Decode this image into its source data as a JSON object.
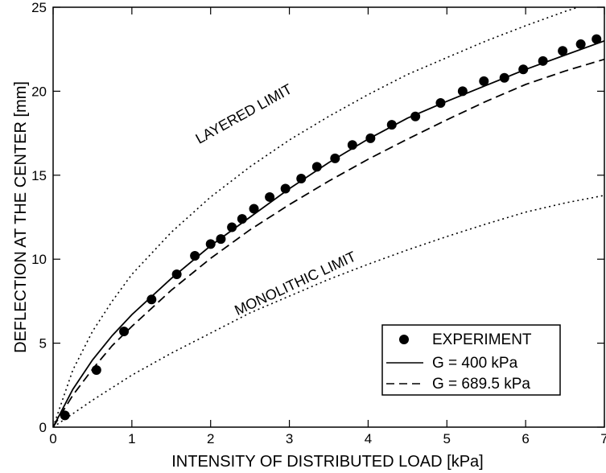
{
  "chart_data": {
    "type": "line",
    "title": "",
    "xlabel": "INTENSITY OF DISTRIBUTED LOAD [kPa]",
    "ylabel": "DEFLECTION AT THE CENTER [mm]",
    "xlim": [
      0,
      7
    ],
    "ylim": [
      0,
      25
    ],
    "x_ticks": [
      0,
      1,
      2,
      3,
      4,
      5,
      6,
      7
    ],
    "y_ticks": [
      0,
      5,
      10,
      15,
      20,
      25
    ],
    "grid": false,
    "legend_position": "bottom-right",
    "annotations": [
      {
        "text": "LAYERED LIMIT",
        "x": 2.45,
        "y": 18.4,
        "angle": -29
      },
      {
        "text": "MONOLITHIC LIMIT",
        "x": 3.1,
        "y": 8.3,
        "angle": -25
      }
    ],
    "series": [
      {
        "name": "EXPERIMENT",
        "style": "markers",
        "color": "#000000",
        "x": [
          0.15,
          0.55,
          0.9,
          1.25,
          1.57,
          1.8,
          2.0,
          2.13,
          2.27,
          2.4,
          2.55,
          2.75,
          2.95,
          3.15,
          3.35,
          3.58,
          3.8,
          4.03,
          4.3,
          4.6,
          4.92,
          5.2,
          5.47,
          5.73,
          5.97,
          6.22,
          6.47,
          6.7,
          6.9
        ],
        "y": [
          0.7,
          3.4,
          5.7,
          7.6,
          9.1,
          10.2,
          10.9,
          11.2,
          11.9,
          12.4,
          13.0,
          13.7,
          14.2,
          14.8,
          15.5,
          16.0,
          16.8,
          17.2,
          18.0,
          18.5,
          19.3,
          20.0,
          20.6,
          20.8,
          21.3,
          21.8,
          22.4,
          22.8,
          23.1
        ]
      },
      {
        "name": "G = 400 kPa",
        "style": "solid",
        "color": "#000000",
        "x": [
          0,
          0.25,
          0.5,
          0.75,
          1,
          1.5,
          2,
          2.5,
          3,
          3.5,
          4,
          4.5,
          5,
          5.5,
          6,
          6.5,
          7
        ],
        "y": [
          0,
          2.25,
          4.0,
          5.45,
          6.7,
          8.85,
          10.8,
          12.5,
          14.2,
          15.75,
          17.15,
          18.4,
          19.4,
          20.35,
          21.3,
          22.15,
          23.0
        ]
      },
      {
        "name": "G = 689.5 kPa",
        "style": "dashed",
        "color": "#000000",
        "x": [
          0,
          0.25,
          0.5,
          0.75,
          1,
          1.5,
          2,
          2.5,
          3,
          3.5,
          4,
          4.5,
          5,
          5.5,
          6,
          6.5,
          7
        ],
        "y": [
          0,
          1.9,
          3.45,
          4.85,
          6.0,
          8.15,
          10.05,
          11.75,
          13.25,
          14.65,
          15.95,
          17.15,
          18.3,
          19.4,
          20.4,
          21.2,
          21.9
        ]
      },
      {
        "style": "dotted",
        "color": "#000000",
        "x": [
          0,
          0.25,
          0.5,
          0.75,
          1,
          1.5,
          2,
          2.5,
          3,
          3.5,
          4,
          4.5,
          5,
          5.5,
          6,
          6.5,
          7
        ],
        "y": [
          0,
          3.4,
          5.7,
          7.5,
          9.1,
          11.6,
          13.7,
          15.5,
          17.1,
          18.5,
          19.8,
          21.0,
          22.0,
          23.0,
          23.9,
          24.75,
          25.5
        ]
      },
      {
        "style": "dotted",
        "color": "#000000",
        "x": [
          0,
          0.25,
          0.5,
          0.75,
          1,
          1.5,
          2,
          2.5,
          3,
          3.5,
          4,
          4.5,
          5,
          5.5,
          6,
          6.5,
          7
        ],
        "y": [
          0,
          0.8,
          1.6,
          2.35,
          3.1,
          4.4,
          5.6,
          6.8,
          7.8,
          8.8,
          9.7,
          10.55,
          11.35,
          12.1,
          12.8,
          13.35,
          13.8
        ]
      }
    ]
  }
}
